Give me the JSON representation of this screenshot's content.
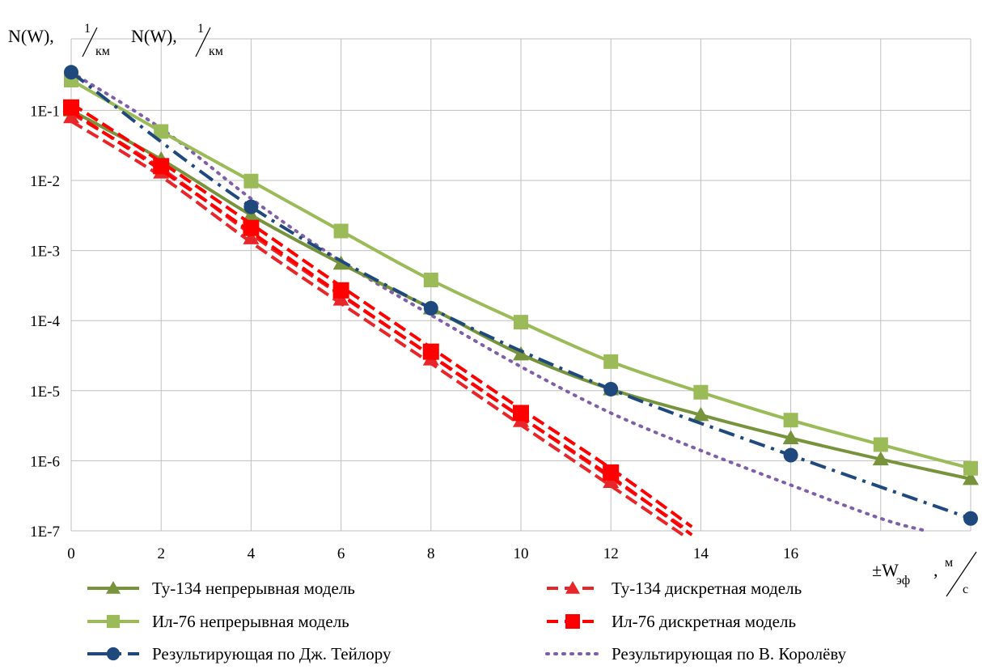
{
  "chart_data": {
    "type": "line",
    "title": "",
    "y_scale": "log",
    "ylim": [
      1e-07,
      0.4
    ],
    "xlim": [
      0,
      20
    ],
    "grid": true,
    "legend_position": "bottom",
    "ylabel_parts": {
      "prefix": "N(W),",
      "num": "1",
      "den": "км"
    },
    "ylabel_parts_2": {
      "prefix": "N(W),",
      "num": "1",
      "den": "км"
    },
    "xlabel_parts": {
      "prefix": "±W",
      "sub": "эф",
      "sep": ",",
      "num": "м",
      "den": "с"
    },
    "x_ticks": [
      {
        "value": 0,
        "label": "0"
      },
      {
        "value": 2,
        "label": "2"
      },
      {
        "value": 4,
        "label": "4"
      },
      {
        "value": 6,
        "label": "6"
      },
      {
        "value": 8,
        "label": "8"
      },
      {
        "value": 10,
        "label": "10"
      },
      {
        "value": 12,
        "label": "12"
      },
      {
        "value": 14,
        "label": "14"
      },
      {
        "value": 16,
        "label": "16"
      }
    ],
    "y_ticks": [
      {
        "value": 0.1,
        "label": "1E-1"
      },
      {
        "value": 0.01,
        "label": "1E-2"
      },
      {
        "value": 0.001,
        "label": "1E-3"
      },
      {
        "value": 0.0001,
        "label": "1E-4"
      },
      {
        "value": 1e-05,
        "label": "1E-5"
      },
      {
        "value": 1e-06,
        "label": "1E-6"
      },
      {
        "value": 1e-07,
        "label": "1E-7"
      }
    ],
    "series": [
      {
        "name": "Ту-134 непрерывная модель",
        "color": "#77933c",
        "dash": "solid",
        "marker": "triangle",
        "x": [
          0,
          2,
          4,
          6,
          8,
          10,
          12,
          14,
          16,
          18,
          20
        ],
        "y": [
          0.1,
          0.02,
          0.0032,
          0.00065,
          0.00015,
          3.3e-05,
          1.05e-05,
          4.5e-06,
          2.1e-06,
          1.05e-06,
          5.5e-07
        ]
      },
      {
        "name": "Ил-76 непрерывная модель",
        "color": "#9bbb59",
        "dash": "solid",
        "marker": "square",
        "x": [
          0,
          2,
          4,
          6,
          8,
          10,
          12,
          14,
          16,
          18,
          20
        ],
        "y": [
          0.27,
          0.05,
          0.0098,
          0.0019,
          0.00038,
          9.5e-05,
          2.6e-05,
          9.5e-06,
          3.8e-06,
          1.7e-06,
          7.8e-07
        ]
      },
      {
        "name": "Ту-134 дискретная модель",
        "color": "#e8262a",
        "dash": "dashed",
        "marker": "triangle",
        "x": [
          0,
          2,
          4,
          6,
          8,
          10,
          12,
          13.6
        ],
        "y": [
          0.08,
          0.013,
          0.0015,
          0.0002,
          2.8e-05,
          3.7e-06,
          5e-07,
          1e-07
        ],
        "marker_count": 7
      },
      {
        "name": "Ил-76 дискретная модель",
        "color": "#ff0000",
        "dash": "dashed",
        "marker": "bigsquare",
        "x": [
          0,
          2,
          4,
          6,
          8,
          10,
          12,
          13.8
        ],
        "y": [
          0.11,
          0.016,
          0.0021,
          0.00027,
          3.6e-05,
          4.8e-06,
          6.8e-07,
          1e-07
        ],
        "marker_count": 7
      },
      {
        "name": "Результирующая по Дж. Тейлору",
        "color": "#1f497d",
        "dash": "dashdot",
        "marker": "circle",
        "x": [
          0,
          4,
          8,
          12,
          16,
          20
        ],
        "y": [
          0.35,
          0.0042,
          0.00015,
          1.05e-05,
          1.2e-06,
          1.5e-07
        ]
      },
      {
        "name": "Результирующая по В. Королёву",
        "color": "#7f5fa8",
        "dash": "dotted",
        "marker": "none",
        "x": [
          0,
          2,
          4,
          6,
          8,
          10,
          12,
          14,
          16,
          18,
          19
        ],
        "y": [
          0.35,
          0.055,
          0.0055,
          0.0007,
          0.00012,
          2.2e-05,
          4.8e-06,
          1.4e-06,
          4.5e-07,
          1.5e-07,
          1e-07
        ]
      }
    ]
  }
}
